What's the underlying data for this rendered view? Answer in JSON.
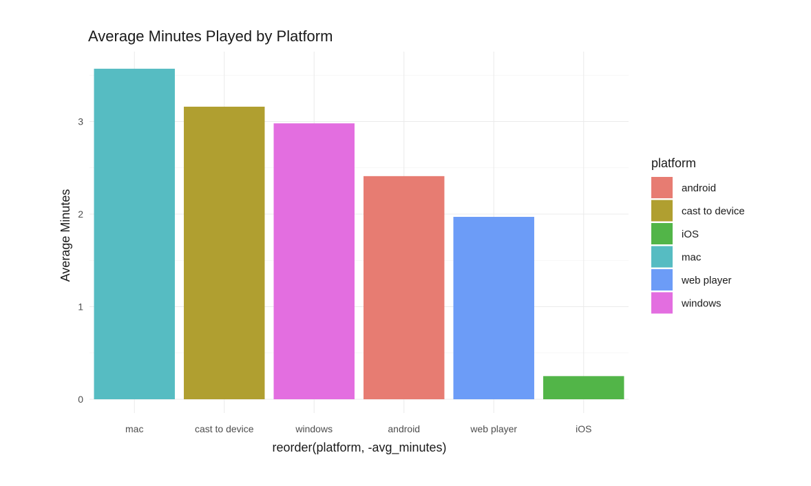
{
  "chart_data": {
    "type": "bar",
    "title": "Average Minutes Played by Platform",
    "xlabel": "reorder(platform, -avg_minutes)",
    "ylabel": "Average Minutes",
    "ylim": [
      0,
      3.7
    ],
    "yticks": [
      0,
      1,
      2,
      3
    ],
    "y_minor_ticks": [
      0.5,
      1.5,
      2.5,
      3.5
    ],
    "categories": [
      "mac",
      "cast to device",
      "windows",
      "android",
      "web player",
      "iOS"
    ],
    "values": [
      3.57,
      3.16,
      2.98,
      2.41,
      1.97,
      0.25
    ],
    "bar_colors": [
      "#56BCC2",
      "#B09F30",
      "#E36EE0",
      "#E77C72",
      "#6C9CF7",
      "#52B548"
    ],
    "grid": true,
    "legend": {
      "title": "platform",
      "position": "right",
      "entries": [
        {
          "label": "android",
          "color": "#E77C72"
        },
        {
          "label": "cast to device",
          "color": "#B09F30"
        },
        {
          "label": "iOS",
          "color": "#52B548"
        },
        {
          "label": "mac",
          "color": "#56BCC2"
        },
        {
          "label": "web player",
          "color": "#6C9CF7"
        },
        {
          "label": "windows",
          "color": "#E36EE0"
        }
      ]
    }
  }
}
